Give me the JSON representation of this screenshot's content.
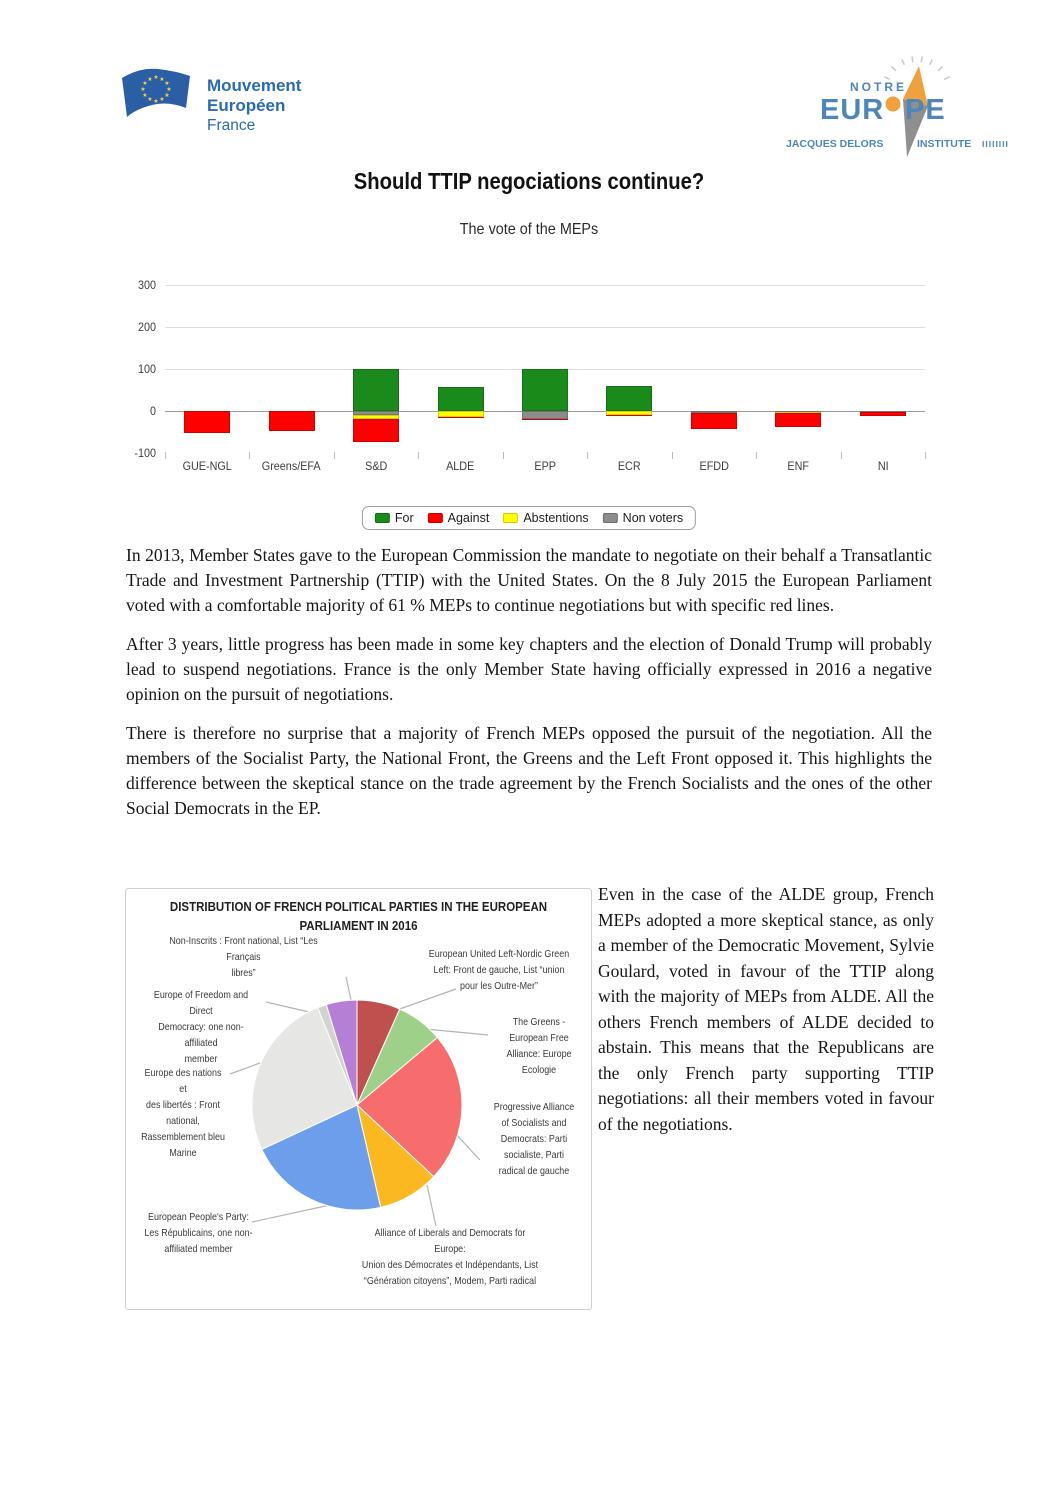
{
  "title": "Should TTIP negociations continue?",
  "subtitle": "The vote of the MEPs",
  "header": {
    "left_logo": {
      "line1": "Mouvement",
      "line2": "Européen",
      "line3": "France"
    },
    "right_logo": {
      "notre": "NOTRE",
      "eur": "EUR",
      "pe": "PE",
      "bottom_left": "JACQUES DELORS",
      "bottom_right": "INSTITUTE",
      "tick_marks": "IIIIIIII",
      "brand_blue": "#4d86bb",
      "brand_orange": "#f0a13e"
    }
  },
  "chart_data": [
    {
      "type": "bar",
      "title": "The vote of the MEPs",
      "categories": [
        "GUE-NGL",
        "Greens/EFA",
        "S&D",
        "ALDE",
        "EPP",
        "ECR",
        "EFDD",
        "ENF",
        "NI"
      ],
      "series": [
        {
          "name": "For",
          "color": "#1a8a1a",
          "values": [
            0,
            0,
            100,
            57,
            100,
            60,
            0,
            0,
            0
          ]
        },
        {
          "name": "Against",
          "color": "#fe0000",
          "values": [
            52,
            48,
            55,
            2,
            3,
            3,
            39,
            35,
            10
          ]
        },
        {
          "name": "Abstentions",
          "color": "#ffff00",
          "values": [
            0,
            0,
            11,
            13,
            0,
            8,
            0,
            2,
            0
          ]
        },
        {
          "name": "Non voters",
          "color": "#8c8c8c",
          "values": [
            0,
            0,
            9,
            1,
            19,
            1,
            4,
            2,
            3
          ]
        }
      ],
      "ylim": [
        -100,
        300
      ],
      "yticks": [
        300,
        200,
        100,
        0,
        -100
      ],
      "grid": true,
      "legend_position": "bottom",
      "negative_stack_order": [
        "Non voters",
        "Abstentions",
        "Against"
      ],
      "note": "For is plotted above zero; Against, Abstentions and Non voters are stacked below zero"
    },
    {
      "type": "pie",
      "title": "DISTRIBUTION OF FRENCH POLITICAL PARTIES IN THE EUROPEAN PARLIAMENT IN 2016",
      "slices": [
        {
          "key": "gue-ngl",
          "label": "European United Left-Nordic Green Left: Front de gauche, List “union pour les Outre-Mer”",
          "degrees": 24,
          "color": "#c0504d"
        },
        {
          "key": "greens-efa",
          "label": "The Greens - European Free Alliance: Europe Ecologie",
          "degrees": 26,
          "color": "#9fd08a"
        },
        {
          "key": "sd",
          "label": "Progressive Alliance of Socialists and Democrats: Parti socialiste, Parti radical de gauche",
          "degrees": 83,
          "color": "#f76d6d"
        },
        {
          "key": "alde",
          "label": "Alliance of Liberals and Democrats for Europe: Union des Démocrates et Indépendants, List “Génération citoyens”, Modem, Parti radical",
          "degrees": 34,
          "color": "#fbb821"
        },
        {
          "key": "epp",
          "label": "European People's Party: Les Républicains, one non-affiliated member",
          "degrees": 78,
          "color": "#6d9eeb"
        },
        {
          "key": "enf",
          "label": "Europe des nations et des libertés : Front national, Rassemblement bleu Marine",
          "degrees": 93,
          "color": "#e6e6e4"
        },
        {
          "key": "efdd",
          "label": "Europe of Freedom and Direct Democracy: one non-affiliated member",
          "degrees": 5,
          "color": "#d2d2d0"
        },
        {
          "key": "non-inscrits",
          "label": "Non-Inscrits : Front national, List “Les Français libres”",
          "degrees": 17,
          "color": "#b57fd6"
        }
      ]
    }
  ],
  "paragraphs": [
    "In 2013, Member States gave to the European Commission the mandate to negotiate on their behalf a Transatlantic Trade and Investment Partnership (TTIP) with the United States. On the 8 July 2015 the European Parliament voted with a comfortable majority of 61 % MEPs to continue negotiations but with specific red lines.",
    "After 3 years, little progress has been made in some key chapters and the election of Donald Trump will probably lead to suspend negotiations. France is the only Member State having officially expressed in 2016 a negative opinion on the pursuit of negotiations.",
    "There is therefore no surprise that a majority of French MEPs opposed the pursuit of the negotiation. All the members of the Socialist Party, the National Front, the Greens and the Left Front opposed it. This highlights the difference between the skeptical stance on the trade agreement by the French Socialists and the ones of the other Social Democrats in the EP."
  ],
  "pie_panel": {
    "title": "DISTRIBUTION OF FRENCH POLITICAL PARTIES IN THE EUROPEAN\nPARLIAMENT IN 2016",
    "labels": {
      "non_inscrits": "Non-Inscrits : Front national, List “Les Français\nlibres”",
      "gue": "European United Left-Nordic Green\nLeft: Front de gauche, List “union\npour les Outre-Mer”",
      "efdd": "Europe of Freedom and Direct\nDemocracy: one non-affiliated\nmember",
      "enf": "Europe des nations et\ndes libertés : Front\nnational,\nRassemblement bleu\nMarine",
      "greens": "The Greens -\nEuropean Free\nAlliance: Europe\nEcologie",
      "sd": "Progressive Alliance\nof Socialists and\nDemocrats: Parti\nsocialiste, Parti\nradical de gauche",
      "epp": "European People's Party:\nLes Républicains, one non-\naffiliated member",
      "alde": "Alliance of Liberals and Democrats for Europe:\nUnion des Démocrates et Indépendants, List\n“Génération citoyens”, Modem, Parti radical"
    }
  },
  "right_column": "Even in the case of the ALDE group, French MEPs adopted a more skeptical stance, as only a member of the Democratic Movement, Sylvie Goulard, voted in favour of the TTIP along with the majority of MEPs from ALDE. All the others French members of ALDE decided to abstain. This means that the Republicans are the only French party supporting TTIP negotiations: all their members voted in favour of the negotiations."
}
